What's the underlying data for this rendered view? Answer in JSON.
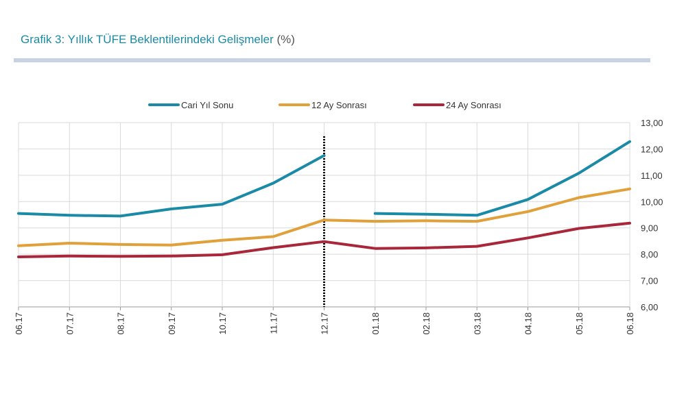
{
  "header": {
    "title": "Grafik 3: Yıllık TÜFE Beklentilerindeki Gelişmeler",
    "unit": "(%)"
  },
  "colors": {
    "title": "#1a8aa6",
    "grid": "#d9d9d9",
    "axis": "#999999",
    "divider": "#000000"
  },
  "chart_data": {
    "type": "line",
    "title": "Grafik 3: Yıllık TÜFE Beklentilerindeki Gelişmeler (%)",
    "xlabel": "",
    "ylabel": "",
    "categories": [
      "06.17",
      "07.17",
      "08.17",
      "09.17",
      "10.17",
      "11.17",
      "12.17",
      "01.18",
      "02.18",
      "03.18",
      "04.18",
      "05.18",
      "06.18"
    ],
    "ylim": [
      6,
      13
    ],
    "yticks": [
      6,
      7,
      8,
      9,
      10,
      11,
      12,
      13
    ],
    "ytick_labels": [
      "6,00",
      "7,00",
      "8,00",
      "9,00",
      "10,00",
      "11,00",
      "12,00",
      "13,00"
    ],
    "y_axis_side": "right",
    "grid": true,
    "legend_position": "top-center",
    "divider_after_category": "12.17",
    "series": [
      {
        "name": "Cari Yıl Sonu",
        "color": "#1a8aa6",
        "values": [
          9.55,
          9.48,
          9.45,
          9.72,
          9.9,
          10.7,
          11.75,
          9.55,
          9.52,
          9.48,
          10.08,
          11.08,
          12.28
        ]
      },
      {
        "name": "12 Ay Sonrası",
        "color": "#e0a03a",
        "values": [
          8.32,
          8.42,
          8.37,
          8.35,
          8.53,
          8.67,
          9.3,
          9.25,
          9.27,
          9.25,
          9.62,
          10.15,
          10.48
        ]
      },
      {
        "name": "24 Ay Sonrası",
        "color": "#a8273a",
        "values": [
          7.9,
          7.93,
          7.92,
          7.93,
          7.98,
          8.25,
          8.48,
          8.22,
          8.24,
          8.3,
          8.62,
          8.98,
          9.18
        ]
      }
    ]
  }
}
